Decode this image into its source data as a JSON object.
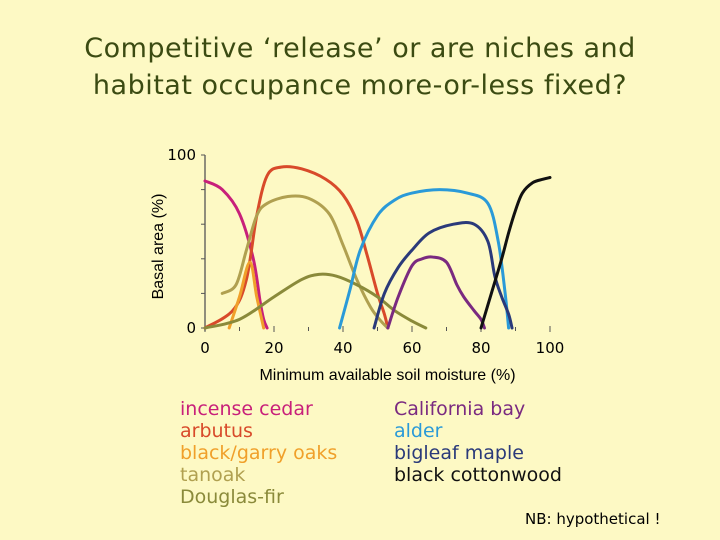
{
  "slide": {
    "title_line1": "Competitive ‘release’ or are niches and",
    "title_line2": "habitat occupance more-or-less fixed?",
    "note": "NB: hypothetical !"
  },
  "chart_data": {
    "type": "line",
    "xlabel": "Minimum available soil moisture (%)",
    "ylabel": "Basal area (%)",
    "xlim": [
      0,
      100
    ],
    "ylim": [
      0,
      100
    ],
    "x_ticks": [
      "0",
      "20",
      "40",
      "60",
      "80",
      "100"
    ],
    "y_ticks": [
      "0",
      "100"
    ],
    "grid": false,
    "legend_columns": [
      [
        "incense cedar",
        "arbutus",
        "black/garry oaks",
        "tanoak",
        "Douglas-fir"
      ],
      [
        "California bay",
        "alder",
        "bigleaf maple",
        "black cottonwood"
      ]
    ],
    "series": [
      {
        "name": "incense cedar",
        "color": "#c8207a",
        "x": [
          0,
          5,
          10,
          14,
          16,
          17,
          18
        ],
        "y": [
          85,
          80,
          66,
          40,
          15,
          5,
          0
        ]
      },
      {
        "name": "arbutus",
        "color": "#d84a2a",
        "x": [
          0,
          8,
          12,
          15,
          18,
          22,
          28,
          35,
          40,
          44,
          47,
          50,
          52,
          53
        ],
        "y": [
          0,
          10,
          28,
          65,
          88,
          93,
          92,
          86,
          77,
          62,
          42,
          20,
          8,
          0
        ]
      },
      {
        "name": "black/garry oaks",
        "color": "#f0a02a",
        "x": [
          7,
          10,
          13,
          15,
          17
        ],
        "y": [
          0,
          18,
          38,
          18,
          0
        ]
      },
      {
        "name": "tanoak",
        "color": "#b0a050",
        "x": [
          5,
          9,
          12,
          15,
          18,
          24,
          30,
          36,
          40,
          44,
          48,
          51,
          53
        ],
        "y": [
          20,
          25,
          45,
          65,
          72,
          76,
          75,
          66,
          48,
          28,
          12,
          4,
          0
        ]
      },
      {
        "name": "Douglas-fir",
        "color": "#8a8a3a",
        "x": [
          0,
          10,
          20,
          28,
          33,
          38,
          44,
          50,
          55,
          60,
          64
        ],
        "y": [
          0,
          5,
          18,
          28,
          31,
          30,
          25,
          18,
          10,
          4,
          0
        ]
      },
      {
        "name": "California bay",
        "color": "#7a2a80",
        "x": [
          53,
          56,
          60,
          63,
          66,
          70,
          73,
          75,
          78,
          80,
          81
        ],
        "y": [
          0,
          18,
          36,
          40,
          41,
          38,
          25,
          18,
          10,
          5,
          0
        ]
      },
      {
        "name": "alder",
        "color": "#2a9ad8",
        "x": [
          39,
          42,
          45,
          50,
          55,
          60,
          68,
          76,
          82,
          85,
          87,
          88
        ],
        "y": [
          0,
          22,
          45,
          65,
          74,
          78,
          80,
          78,
          72,
          50,
          20,
          0
        ]
      },
      {
        "name": "bigleaf maple",
        "color": "#2a3a7a",
        "x": [
          49,
          52,
          56,
          60,
          65,
          72,
          78,
          82,
          84,
          86,
          88,
          89
        ],
        "y": [
          0,
          20,
          35,
          45,
          55,
          60,
          60,
          50,
          30,
          18,
          8,
          0
        ]
      },
      {
        "name": "black cottonwood",
        "color": "#111111",
        "x": [
          80,
          83,
          86,
          88,
          90,
          92,
          95,
          98,
          100
        ],
        "y": [
          0,
          20,
          40,
          55,
          68,
          78,
          84,
          86,
          87
        ]
      }
    ]
  }
}
